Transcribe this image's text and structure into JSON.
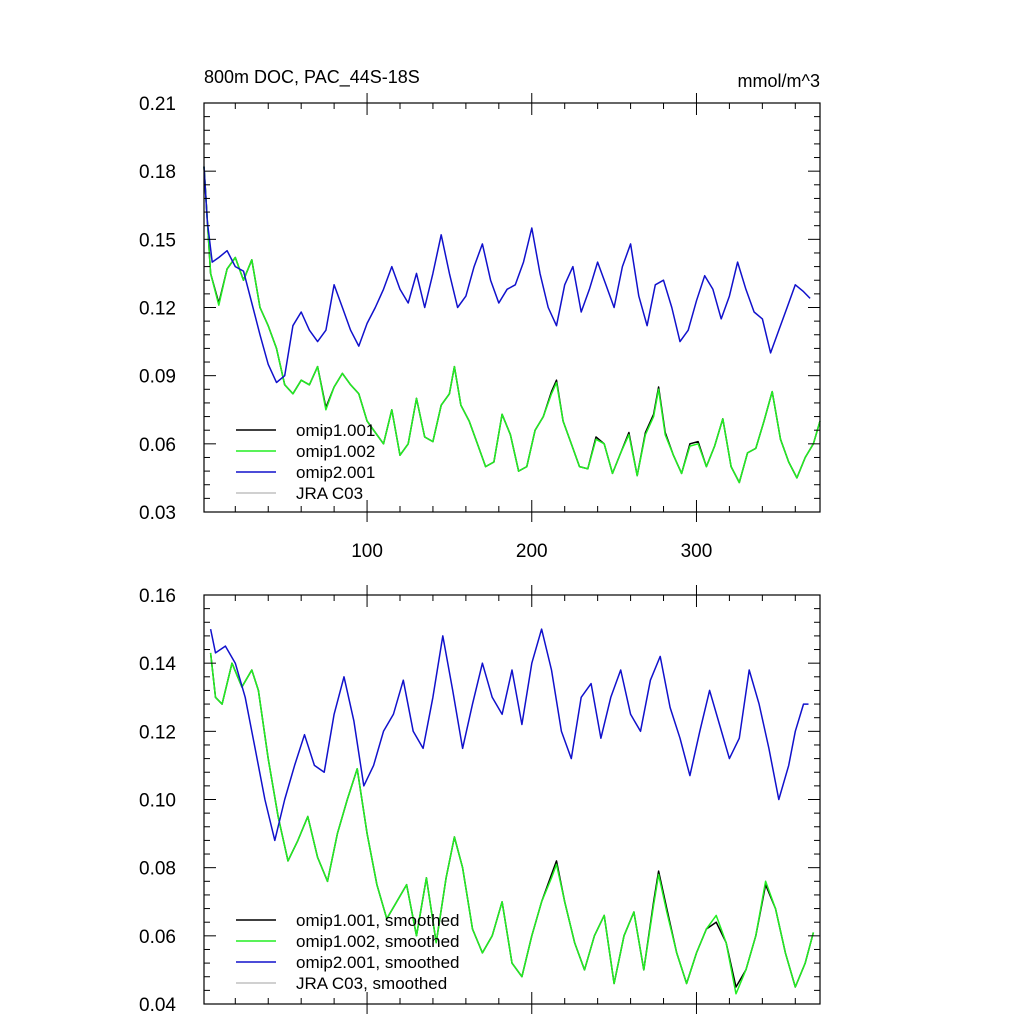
{
  "colors": {
    "omip1_001": "#000000",
    "omip1_002": "#22ee22",
    "omip2_001": "#1111cc",
    "jra_c03": "#c0c0c0",
    "axis": "#000000"
  },
  "chart_data": [
    {
      "id": "top",
      "type": "line",
      "title": "800m DOC, PAC_44S-18S",
      "units_label": "mmol/m^3",
      "xlim": [
        1,
        375
      ],
      "ylim": [
        0.03,
        0.21
      ],
      "yticks": [
        0.03,
        0.06,
        0.09,
        0.12,
        0.15,
        0.18,
        0.21
      ],
      "ytick_labels": [
        "0.03",
        "0.06",
        "0.09",
        "0.12",
        "0.15",
        "0.18",
        "0.21"
      ],
      "xticks": [
        100,
        200,
        300
      ],
      "xtick_labels": [
        "100",
        "200",
        "300"
      ],
      "legend_position": "lower-left",
      "series": [
        {
          "name": "omip1.001",
          "color_key": "omip1_001",
          "x": [
            1,
            5,
            10,
            15,
            20,
            25,
            30,
            35,
            40,
            45,
            50,
            55,
            60,
            65,
            70,
            75,
            80,
            85,
            90,
            95,
            100,
            105,
            110,
            115,
            120,
            125,
            130,
            135,
            140,
            145,
            150,
            153,
            157,
            162,
            167,
            172,
            177,
            182,
            187,
            192,
            197,
            202,
            207,
            212,
            215,
            219,
            224,
            229,
            234,
            239,
            244,
            249,
            254,
            259,
            264,
            269,
            274,
            277,
            281,
            286,
            291,
            296,
            301,
            306,
            311,
            316,
            321,
            326,
            331,
            336,
            341,
            346,
            351,
            356,
            361,
            366,
            371,
            375
          ],
          "y": [
            0.182,
            0.135,
            0.122,
            0.137,
            0.142,
            0.132,
            0.141,
            0.12,
            0.112,
            0.102,
            0.086,
            0.082,
            0.088,
            0.086,
            0.094,
            0.076,
            0.085,
            0.091,
            0.086,
            0.082,
            0.07,
            0.065,
            0.06,
            0.075,
            0.055,
            0.06,
            0.08,
            0.063,
            0.061,
            0.077,
            0.082,
            0.094,
            0.077,
            0.07,
            0.06,
            0.05,
            0.052,
            0.073,
            0.064,
            0.048,
            0.05,
            0.066,
            0.072,
            0.083,
            0.088,
            0.07,
            0.06,
            0.05,
            0.049,
            0.063,
            0.06,
            0.047,
            0.056,
            0.065,
            0.046,
            0.065,
            0.073,
            0.085,
            0.065,
            0.055,
            0.047,
            0.06,
            0.061,
            0.05,
            0.059,
            0.071,
            0.05,
            0.043,
            0.056,
            0.058,
            0.07,
            0.083,
            0.062,
            0.052,
            0.045,
            0.054,
            0.06,
            0.07
          ]
        },
        {
          "name": "omip1.002",
          "color_key": "omip1_002",
          "x": [
            1,
            5,
            10,
            15,
            20,
            25,
            30,
            35,
            40,
            45,
            50,
            55,
            60,
            65,
            70,
            75,
            80,
            85,
            90,
            95,
            100,
            105,
            110,
            115,
            120,
            125,
            130,
            135,
            140,
            145,
            150,
            153,
            157,
            162,
            167,
            172,
            177,
            182,
            187,
            192,
            197,
            202,
            207,
            212,
            215,
            219,
            224,
            229,
            234,
            239,
            244,
            249,
            254,
            259,
            264,
            269,
            274,
            277,
            281,
            286,
            291,
            296,
            301,
            306,
            311,
            316,
            321,
            326,
            331,
            336,
            341,
            346,
            351,
            356,
            361,
            366,
            371,
            375
          ],
          "y": [
            0.182,
            0.135,
            0.121,
            0.137,
            0.142,
            0.132,
            0.141,
            0.12,
            0.112,
            0.102,
            0.086,
            0.082,
            0.088,
            0.086,
            0.094,
            0.075,
            0.085,
            0.091,
            0.086,
            0.082,
            0.07,
            0.065,
            0.06,
            0.075,
            0.055,
            0.06,
            0.08,
            0.063,
            0.061,
            0.077,
            0.082,
            0.094,
            0.077,
            0.07,
            0.06,
            0.05,
            0.052,
            0.073,
            0.064,
            0.048,
            0.05,
            0.066,
            0.072,
            0.082,
            0.087,
            0.07,
            0.06,
            0.05,
            0.049,
            0.062,
            0.06,
            0.047,
            0.056,
            0.064,
            0.046,
            0.064,
            0.072,
            0.084,
            0.064,
            0.055,
            0.047,
            0.059,
            0.06,
            0.05,
            0.059,
            0.071,
            0.05,
            0.043,
            0.056,
            0.058,
            0.07,
            0.083,
            0.062,
            0.052,
            0.045,
            0.054,
            0.06,
            0.07
          ]
        },
        {
          "name": "omip2.001",
          "color_key": "omip2_001",
          "x": [
            1,
            3,
            6,
            10,
            15,
            20,
            25,
            30,
            35,
            40,
            45,
            50,
            55,
            60,
            65,
            70,
            75,
            80,
            85,
            90,
            95,
            100,
            105,
            110,
            115,
            120,
            125,
            130,
            135,
            140,
            145,
            150,
            155,
            160,
            165,
            170,
            175,
            180,
            185,
            190,
            195,
            200,
            205,
            210,
            215,
            220,
            225,
            230,
            235,
            240,
            245,
            250,
            255,
            260,
            265,
            270,
            275,
            280,
            285,
            290,
            295,
            300,
            305,
            310,
            315,
            320,
            325,
            330,
            335,
            340,
            345,
            350,
            355,
            360,
            365,
            369
          ],
          "y": [
            0.182,
            0.158,
            0.14,
            0.142,
            0.145,
            0.138,
            0.136,
            0.122,
            0.108,
            0.095,
            0.087,
            0.09,
            0.112,
            0.118,
            0.11,
            0.105,
            0.11,
            0.13,
            0.12,
            0.11,
            0.103,
            0.113,
            0.12,
            0.128,
            0.138,
            0.128,
            0.122,
            0.135,
            0.12,
            0.135,
            0.152,
            0.135,
            0.12,
            0.125,
            0.138,
            0.148,
            0.132,
            0.122,
            0.128,
            0.13,
            0.14,
            0.155,
            0.135,
            0.12,
            0.112,
            0.13,
            0.138,
            0.118,
            0.128,
            0.14,
            0.13,
            0.12,
            0.138,
            0.148,
            0.125,
            0.112,
            0.13,
            0.132,
            0.12,
            0.105,
            0.11,
            0.123,
            0.134,
            0.128,
            0.115,
            0.125,
            0.14,
            0.128,
            0.118,
            0.115,
            0.1,
            0.11,
            0.12,
            0.13,
            0.127,
            0.124
          ]
        },
        {
          "name": "JRA C03",
          "color_key": "jra_c03",
          "x": [],
          "y": []
        }
      ]
    },
    {
      "id": "bottom",
      "type": "line",
      "title": "",
      "xlim": [
        1,
        375
      ],
      "ylim": [
        0.04,
        0.16
      ],
      "yticks": [
        0.04,
        0.06,
        0.08,
        0.1,
        0.12,
        0.14,
        0.16
      ],
      "ytick_labels": [
        "0.04",
        "0.06",
        "0.08",
        "0.10",
        "0.12",
        "0.14",
        "0.16"
      ],
      "xticks": [
        100,
        200,
        300
      ],
      "xtick_labels": [],
      "legend_position": "lower-left",
      "series": [
        {
          "name": "omip1.001, smoothed",
          "color_key": "omip1_001",
          "x": [
            5,
            8,
            12,
            18,
            24,
            30,
            34,
            40,
            46,
            52,
            58,
            64,
            70,
            76,
            82,
            88,
            94,
            100,
            106,
            112,
            118,
            124,
            130,
            136,
            142,
            148,
            153,
            158,
            164,
            170,
            176,
            182,
            188,
            194,
            200,
            206,
            212,
            215,
            220,
            226,
            232,
            238,
            244,
            250,
            256,
            262,
            268,
            274,
            277,
            282,
            288,
            294,
            300,
            306,
            312,
            318,
            324,
            330,
            336,
            342,
            348,
            354,
            360,
            366,
            371
          ],
          "y": [
            0.143,
            0.13,
            0.128,
            0.14,
            0.133,
            0.138,
            0.132,
            0.112,
            0.095,
            0.082,
            0.088,
            0.095,
            0.083,
            0.076,
            0.09,
            0.1,
            0.109,
            0.09,
            0.075,
            0.065,
            0.07,
            0.075,
            0.06,
            0.077,
            0.058,
            0.077,
            0.089,
            0.08,
            0.062,
            0.055,
            0.06,
            0.07,
            0.052,
            0.048,
            0.06,
            0.07,
            0.078,
            0.082,
            0.07,
            0.058,
            0.05,
            0.06,
            0.066,
            0.046,
            0.06,
            0.067,
            0.05,
            0.07,
            0.079,
            0.068,
            0.055,
            0.046,
            0.055,
            0.062,
            0.064,
            0.058,
            0.045,
            0.05,
            0.06,
            0.075,
            0.068,
            0.055,
            0.045,
            0.052,
            0.061
          ]
        },
        {
          "name": "omip1.002, smoothed",
          "color_key": "omip1_002",
          "x": [
            5,
            8,
            12,
            18,
            24,
            30,
            34,
            40,
            46,
            52,
            58,
            64,
            70,
            76,
            82,
            88,
            94,
            100,
            106,
            112,
            118,
            124,
            130,
            136,
            142,
            148,
            153,
            158,
            164,
            170,
            176,
            182,
            188,
            194,
            200,
            206,
            212,
            215,
            220,
            226,
            232,
            238,
            244,
            250,
            256,
            262,
            268,
            274,
            277,
            282,
            288,
            294,
            300,
            306,
            312,
            318,
            324,
            330,
            336,
            342,
            348,
            354,
            360,
            366,
            371
          ],
          "y": [
            0.143,
            0.13,
            0.128,
            0.14,
            0.133,
            0.138,
            0.132,
            0.112,
            0.095,
            0.082,
            0.088,
            0.095,
            0.083,
            0.076,
            0.09,
            0.1,
            0.109,
            0.09,
            0.075,
            0.065,
            0.07,
            0.075,
            0.06,
            0.077,
            0.058,
            0.077,
            0.089,
            0.08,
            0.062,
            0.055,
            0.06,
            0.07,
            0.052,
            0.048,
            0.06,
            0.07,
            0.077,
            0.081,
            0.07,
            0.058,
            0.05,
            0.06,
            0.066,
            0.046,
            0.06,
            0.067,
            0.05,
            0.069,
            0.078,
            0.067,
            0.055,
            0.046,
            0.055,
            0.062,
            0.066,
            0.058,
            0.043,
            0.05,
            0.06,
            0.076,
            0.068,
            0.055,
            0.045,
            0.052,
            0.061
          ]
        },
        {
          "name": "omip2.001, smoothed",
          "color_key": "omip2_001",
          "x": [
            5,
            8,
            14,
            20,
            26,
            32,
            38,
            44,
            50,
            56,
            62,
            68,
            74,
            80,
            86,
            92,
            98,
            104,
            110,
            116,
            122,
            128,
            134,
            140,
            146,
            152,
            158,
            164,
            170,
            176,
            182,
            188,
            194,
            200,
            206,
            212,
            218,
            224,
            230,
            236,
            242,
            248,
            254,
            260,
            266,
            272,
            278,
            284,
            290,
            296,
            302,
            308,
            314,
            320,
            326,
            332,
            338,
            344,
            350,
            356,
            360,
            365,
            368
          ],
          "y": [
            0.15,
            0.143,
            0.145,
            0.14,
            0.13,
            0.115,
            0.1,
            0.088,
            0.1,
            0.11,
            0.119,
            0.11,
            0.108,
            0.125,
            0.136,
            0.123,
            0.104,
            0.11,
            0.12,
            0.125,
            0.135,
            0.12,
            0.115,
            0.13,
            0.148,
            0.132,
            0.115,
            0.128,
            0.14,
            0.13,
            0.125,
            0.138,
            0.122,
            0.14,
            0.15,
            0.138,
            0.12,
            0.112,
            0.13,
            0.134,
            0.118,
            0.13,
            0.138,
            0.125,
            0.12,
            0.135,
            0.142,
            0.127,
            0.118,
            0.107,
            0.12,
            0.132,
            0.122,
            0.112,
            0.118,
            0.138,
            0.128,
            0.115,
            0.1,
            0.11,
            0.12,
            0.128,
            0.128
          ]
        },
        {
          "name": "JRA C03, smoothed",
          "color_key": "jra_c03",
          "x": [],
          "y": []
        }
      ]
    }
  ]
}
